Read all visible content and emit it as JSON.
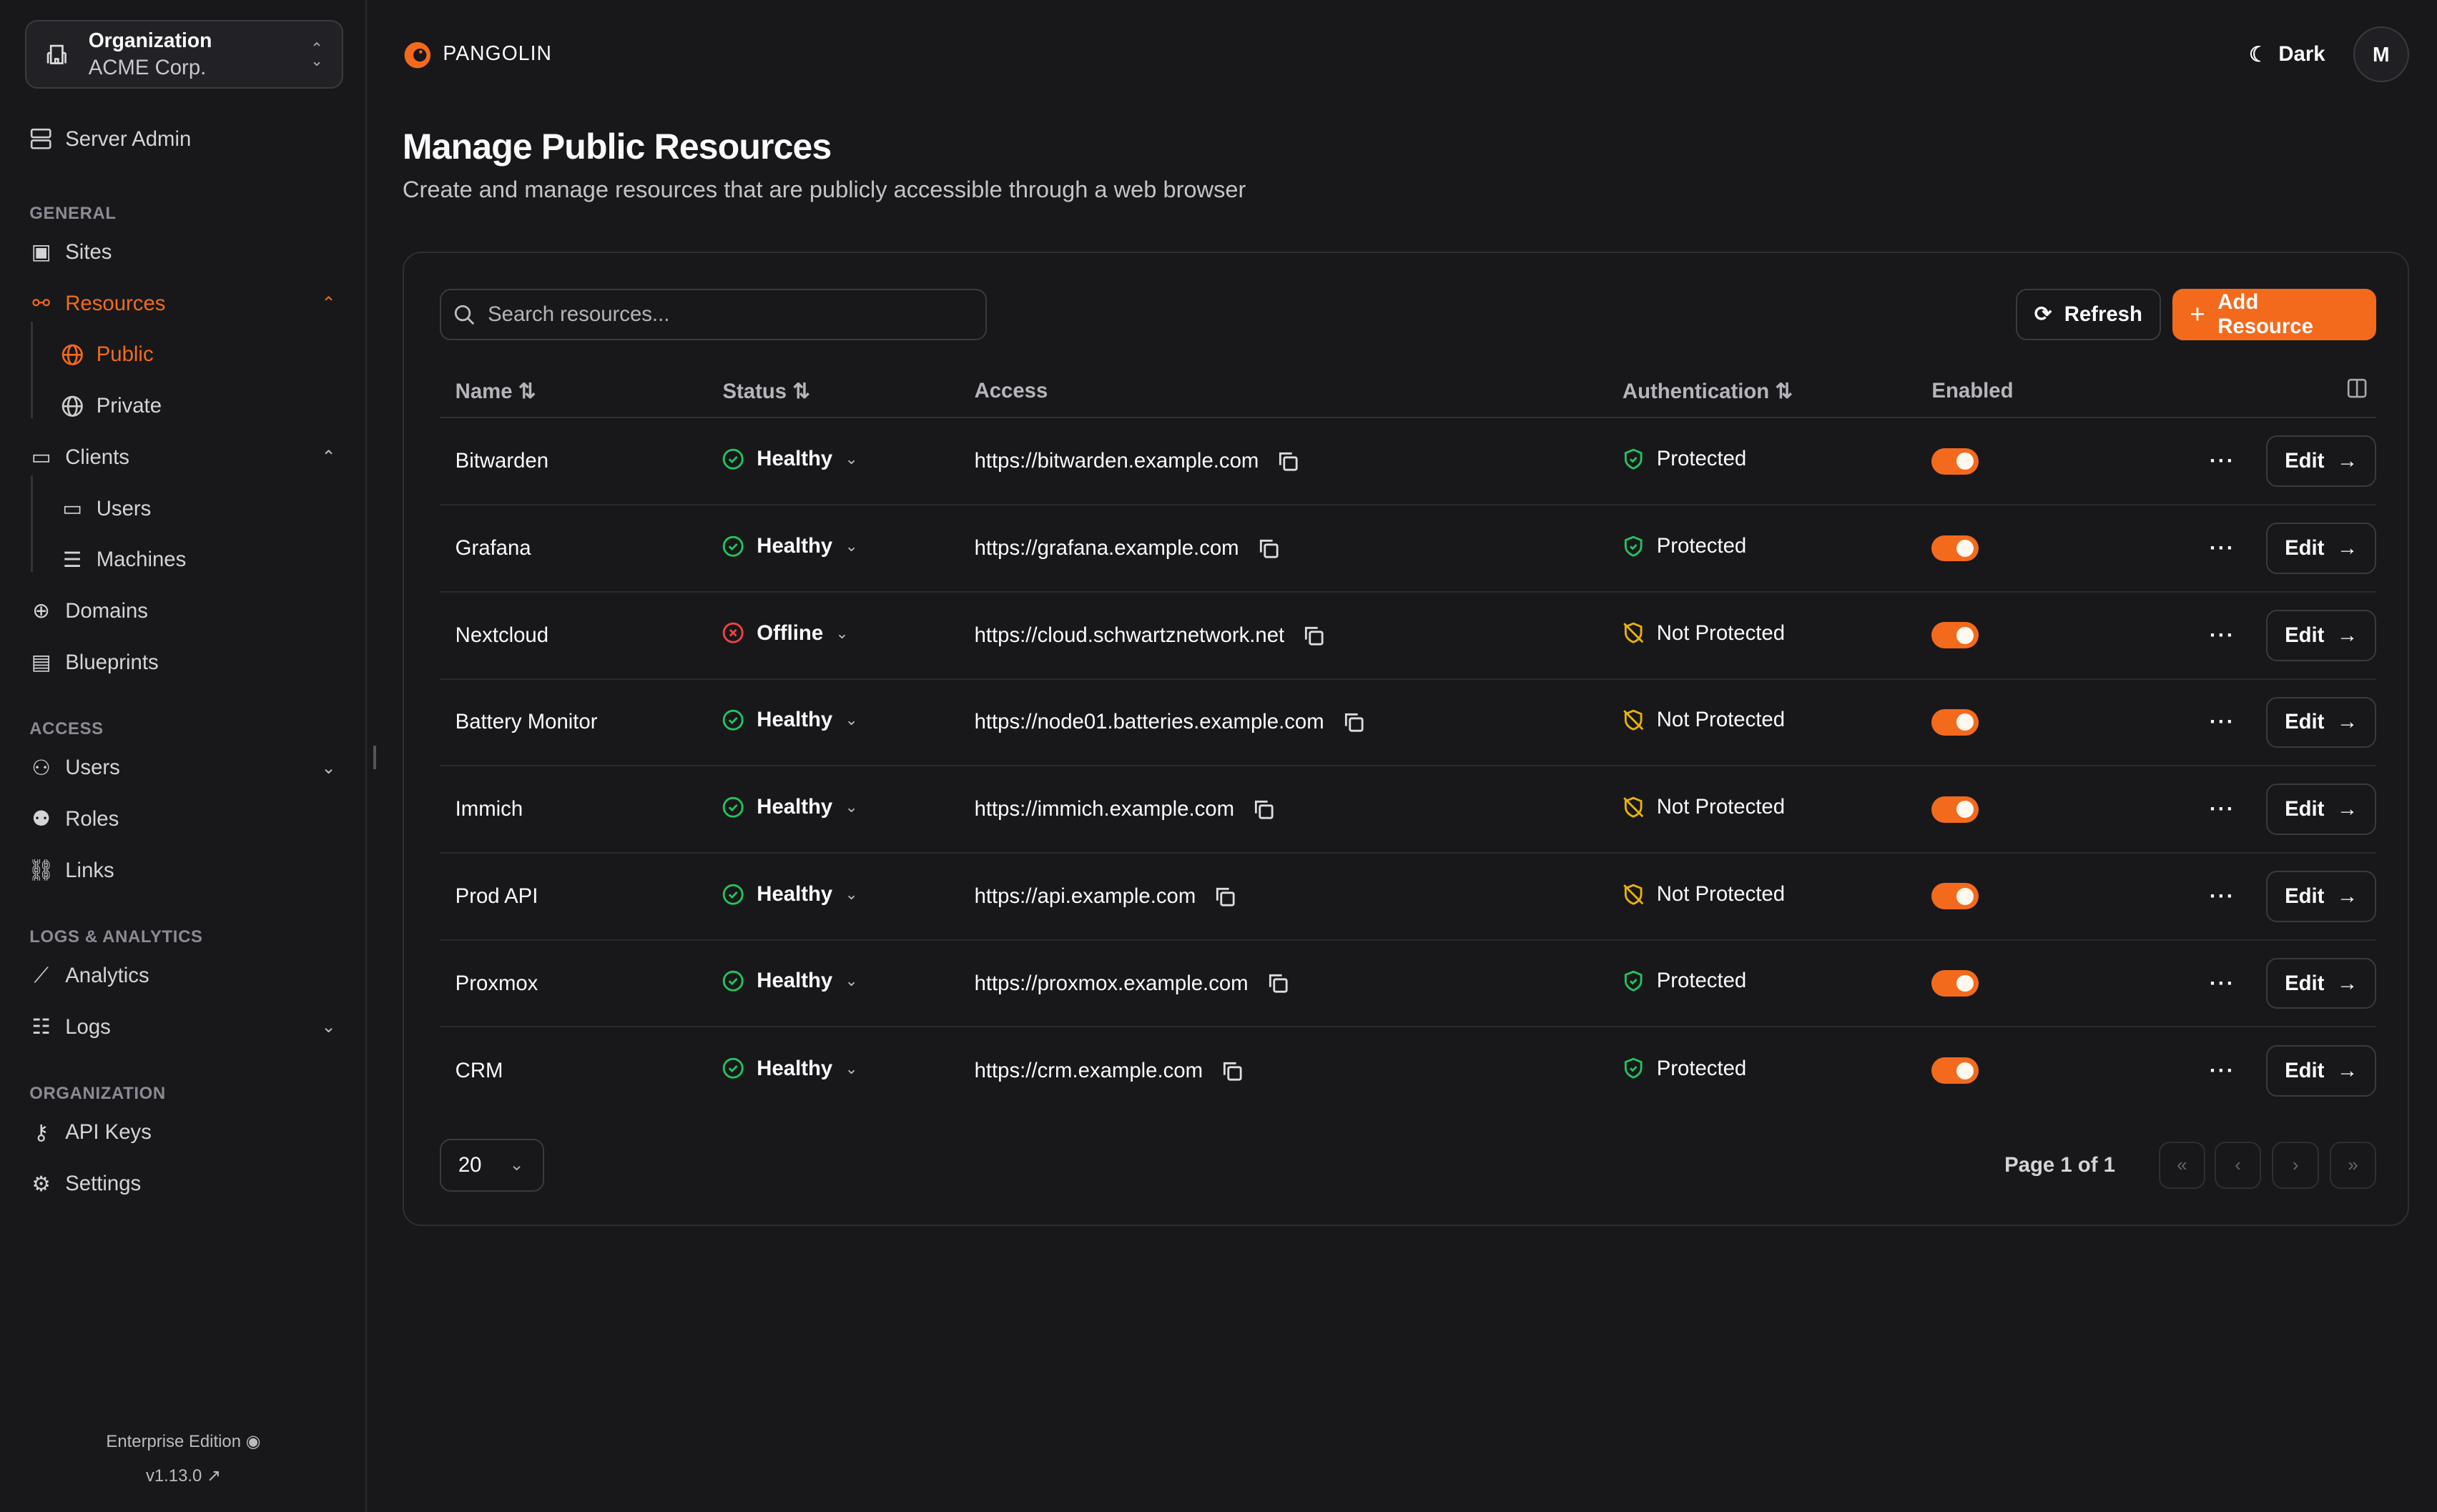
{
  "org": {
    "label": "Organization",
    "name": "ACME Corp."
  },
  "sidebar": {
    "server_admin": "Server Admin",
    "sections": [
      "GENERAL",
      "ACCESS",
      "LOGS & ANALYTICS",
      "ORGANIZATION"
    ],
    "general": {
      "sites": "Sites",
      "resources": "Resources",
      "public": "Public",
      "private": "Private",
      "clients": "Clients",
      "users": "Users",
      "machines": "Machines",
      "domains": "Domains",
      "blueprints": "Blueprints"
    },
    "access": {
      "users": "Users",
      "roles": "Roles",
      "links": "Links"
    },
    "logs": {
      "analytics": "Analytics",
      "logs": "Logs"
    },
    "organization": {
      "api_keys": "API Keys",
      "settings": "Settings"
    },
    "edition": "Enterprise Edition",
    "version": "v1.13.0"
  },
  "header": {
    "brand": "PANGOLIN",
    "theme": "Dark",
    "avatar": "M"
  },
  "page": {
    "title": "Manage Public Resources",
    "subtitle": "Create and manage resources that are publicly accessible through a web browser"
  },
  "toolbar": {
    "search_placeholder": "Search resources...",
    "refresh": "Refresh",
    "add": "Add Resource"
  },
  "table": {
    "columns": [
      "Name",
      "Status",
      "Access",
      "Authentication",
      "Enabled"
    ],
    "edit_label": "Edit",
    "rows": [
      {
        "name": "Bitwarden",
        "status": "Healthy",
        "access": "https://bitwarden.example.com",
        "auth": "Protected",
        "enabled": true
      },
      {
        "name": "Grafana",
        "status": "Healthy",
        "access": "https://grafana.example.com",
        "auth": "Protected",
        "enabled": true
      },
      {
        "name": "Nextcloud",
        "status": "Offline",
        "access": "https://cloud.schwartznetwork.net",
        "auth": "Not Protected",
        "enabled": true
      },
      {
        "name": "Battery Monitor",
        "status": "Healthy",
        "access": "https://node01.batteries.example.com",
        "auth": "Not Protected",
        "enabled": true
      },
      {
        "name": "Immich",
        "status": "Healthy",
        "access": "https://immich.example.com",
        "auth": "Not Protected",
        "enabled": true
      },
      {
        "name": "Prod API",
        "status": "Healthy",
        "access": "https://api.example.com",
        "auth": "Not Protected",
        "enabled": true
      },
      {
        "name": "Proxmox",
        "status": "Healthy",
        "access": "https://proxmox.example.com",
        "auth": "Protected",
        "enabled": true
      },
      {
        "name": "CRM",
        "status": "Healthy",
        "access": "https://crm.example.com",
        "auth": "Protected",
        "enabled": true
      }
    ]
  },
  "pagination": {
    "page_size": "20",
    "page_label": "Page 1 of 1"
  },
  "colors": {
    "accent": "#f36a1d",
    "healthy": "#22c55e",
    "offline": "#ef4444",
    "warning": "#eab308"
  }
}
